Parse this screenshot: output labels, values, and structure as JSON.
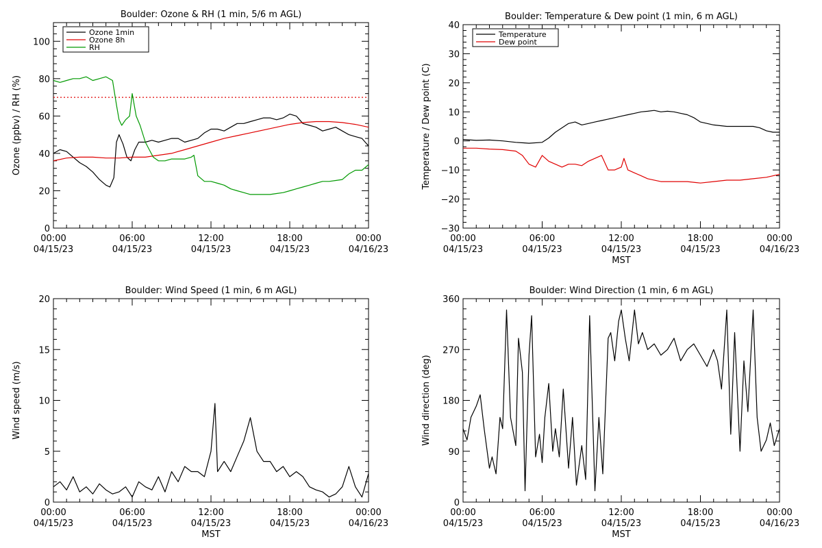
{
  "chart_data": [
    {
      "id": "ozone_rh",
      "type": "line",
      "title": "Boulder: Ozone & RH (1 min, 5/6 m AGL)",
      "xlabel": "",
      "ylabel": "Ozone (ppbv) / RH (%)",
      "xlim": [
        0,
        24
      ],
      "ylim": [
        0,
        110
      ],
      "x_ticks": [
        0,
        6,
        12,
        18,
        24
      ],
      "x_tick_labels": [
        [
          "00:00",
          "04/15/23"
        ],
        [
          "06:00",
          "04/15/23"
        ],
        [
          "12:00",
          "04/15/23"
        ],
        [
          "18:00",
          "04/15/23"
        ],
        [
          "00:00",
          "04/16/23"
        ]
      ],
      "y_ticks": [
        0,
        20,
        40,
        60,
        80,
        100
      ],
      "y_tick_labels": [
        "0",
        "20",
        "40",
        "60",
        "80",
        "100"
      ],
      "grid": false,
      "legend": {
        "placement": "top-left",
        "entries": [
          {
            "name": "Ozone 1min",
            "color": "#000000"
          },
          {
            "name": "Ozone 8h",
            "color": "#e00000"
          },
          {
            "name": "RH",
            "color": "#009900"
          }
        ]
      },
      "reference_lines": [
        {
          "y": 70,
          "style": "dotted",
          "color": "#e00000"
        }
      ],
      "series": [
        {
          "name": "Ozone 1min",
          "color": "#000000",
          "x": [
            0,
            0.5,
            1,
            1.5,
            2,
            2.5,
            3,
            3.5,
            4,
            4.3,
            4.6,
            4.8,
            5,
            5.3,
            5.6,
            5.9,
            6.2,
            6.5,
            7,
            7.5,
            8,
            8.5,
            9,
            9.5,
            10,
            10.5,
            11,
            11.5,
            12,
            12.5,
            13,
            13.5,
            14,
            14.5,
            15,
            15.5,
            16,
            16.5,
            17,
            17.5,
            18,
            18.5,
            19,
            19.5,
            20,
            20.5,
            21,
            21.5,
            22,
            22.5,
            23,
            23.5,
            24
          ],
          "values": [
            40,
            42,
            41,
            38,
            35,
            33,
            30,
            26,
            23,
            22,
            27,
            46,
            50,
            45,
            38,
            36,
            42,
            46,
            46,
            47,
            46,
            47,
            48,
            48,
            46,
            47,
            48,
            51,
            53,
            53,
            52,
            54,
            56,
            56,
            57,
            58,
            59,
            59,
            58,
            59,
            61,
            60,
            56,
            55,
            54,
            52,
            53,
            54,
            52,
            50,
            49,
            48,
            44
          ]
        },
        {
          "name": "Ozone 8h",
          "color": "#e00000",
          "x": [
            0,
            1,
            2,
            3,
            4,
            5,
            6,
            7,
            8,
            9,
            10,
            11,
            12,
            13,
            14,
            15,
            16,
            17,
            18,
            19,
            20,
            21,
            22,
            23,
            24
          ],
          "values": [
            36,
            37.5,
            38,
            38,
            37.5,
            37.5,
            38,
            38,
            39,
            40,
            42,
            44,
            46,
            48,
            49.5,
            51,
            52.5,
            54,
            55.5,
            56.5,
            57,
            57,
            56.5,
            55.5,
            54
          ]
        },
        {
          "name": "RH",
          "color": "#009900",
          "x": [
            0,
            0.5,
            1,
            1.5,
            2,
            2.5,
            3,
            3.5,
            4,
            4.5,
            4.8,
            5,
            5.2,
            5.5,
            5.8,
            6,
            6.3,
            6.6,
            7,
            7.3,
            7.6,
            8,
            8.5,
            9,
            9.5,
            10,
            10.5,
            10.7,
            11,
            11.5,
            12,
            12.5,
            13,
            13.5,
            14,
            14.5,
            15,
            15.5,
            16,
            16.5,
            17,
            17.5,
            18,
            18.5,
            19,
            19.5,
            20,
            20.5,
            21,
            21.5,
            22,
            22.5,
            23,
            23.5,
            24
          ],
          "values": [
            79,
            78,
            79,
            80,
            80,
            81,
            79,
            80,
            81,
            79,
            66,
            58,
            55,
            58,
            60,
            72,
            60,
            55,
            46,
            42,
            38,
            36,
            36,
            37,
            37,
            37,
            38,
            39,
            28,
            25,
            25,
            24,
            23,
            21,
            20,
            19,
            18,
            18,
            18,
            18,
            18.5,
            19,
            20,
            21,
            22,
            23,
            24,
            25,
            25,
            25.5,
            26,
            29,
            31,
            31,
            34
          ]
        }
      ]
    },
    {
      "id": "temp_dew",
      "type": "line",
      "title": "Boulder: Temperature & Dew point (1 min, 6 m AGL)",
      "xlabel": "MST",
      "ylabel": "Temperature / Dew point (C)",
      "xlim": [
        0,
        24
      ],
      "ylim": [
        -30,
        40
      ],
      "x_ticks": [
        0,
        6,
        12,
        18,
        24
      ],
      "x_tick_labels": [
        [
          "00:00",
          "04/15/23"
        ],
        [
          "06:00",
          "04/15/23"
        ],
        [
          "12:00",
          "04/15/23"
        ],
        [
          "18:00",
          "04/15/23"
        ],
        [
          "00:00",
          "04/16/23"
        ]
      ],
      "y_ticks": [
        -30,
        -20,
        -10,
        0,
        10,
        20,
        30,
        40
      ],
      "y_tick_labels": [
        "−30",
        "−20",
        "−10",
        "0",
        "10",
        "20",
        "30",
        "40"
      ],
      "grid": false,
      "legend": {
        "placement": "top-left",
        "entries": [
          {
            "name": "Temperature",
            "color": "#000000"
          },
          {
            "name": "Dew point",
            "color": "#e00000"
          }
        ]
      },
      "reference_lines": [],
      "series": [
        {
          "name": "Temperature",
          "color": "#000000",
          "x": [
            0,
            1,
            2,
            3,
            4,
            5,
            6,
            6.5,
            7,
            7.5,
            8,
            8.5,
            9,
            9.5,
            10,
            10.5,
            11,
            11.5,
            12,
            12.5,
            13,
            13.5,
            14,
            14.5,
            15,
            15.5,
            16,
            16.5,
            17,
            17.5,
            18,
            19,
            20,
            21,
            22,
            22.5,
            23,
            23.5,
            24
          ],
          "values": [
            0.5,
            0.2,
            0.3,
            0,
            -0.5,
            -0.8,
            -0.5,
            1,
            3,
            4.5,
            6,
            6.5,
            5.5,
            6,
            6.5,
            7,
            7.5,
            8,
            8.5,
            9,
            9.5,
            10,
            10.2,
            10.5,
            10,
            10.2,
            10,
            9.5,
            9,
            8,
            6.5,
            5.5,
            5,
            5,
            5,
            4.5,
            3.5,
            3,
            3
          ]
        },
        {
          "name": "Dew point",
          "color": "#e00000",
          "x": [
            0,
            1,
            2,
            3,
            4,
            4.5,
            5,
            5.5,
            6,
            6.5,
            7,
            7.5,
            8,
            8.5,
            9,
            9.5,
            10,
            10.5,
            11,
            11.5,
            12,
            12.2,
            12.5,
            13,
            13.5,
            14,
            15,
            16,
            17,
            18,
            19,
            20,
            21,
            22,
            23,
            24
          ],
          "values": [
            -2.5,
            -2.5,
            -2.8,
            -3,
            -3.5,
            -5,
            -8,
            -9,
            -5,
            -7,
            -8,
            -9,
            -8,
            -8,
            -8.5,
            -7,
            -6,
            -5,
            -10,
            -10,
            -9,
            -6,
            -10,
            -11,
            -12,
            -13,
            -14,
            -14,
            -14,
            -14.5,
            -14,
            -13.5,
            -13.5,
            -13,
            -12.5,
            -11.5
          ]
        }
      ]
    },
    {
      "id": "wind_speed",
      "type": "line",
      "title": "Boulder: Wind Speed (1 min, 6 m AGL)",
      "xlabel": "MST",
      "ylabel": "Wind speed (m/s)",
      "xlim": [
        0,
        24
      ],
      "ylim": [
        0,
        20
      ],
      "x_ticks": [
        0,
        6,
        12,
        18,
        24
      ],
      "x_tick_labels": [
        [
          "00:00",
          "04/15/23"
        ],
        [
          "06:00",
          "04/15/23"
        ],
        [
          "12:00",
          "04/15/23"
        ],
        [
          "18:00",
          "04/15/23"
        ],
        [
          "00:00",
          "04/16/23"
        ]
      ],
      "y_ticks": [
        0,
        5,
        10,
        15,
        20
      ],
      "y_tick_labels": [
        "0",
        "5",
        "10",
        "15",
        "20"
      ],
      "grid": false,
      "legend": null,
      "reference_lines": [],
      "series": [
        {
          "name": "Wind speed",
          "color": "#000000",
          "x": [
            0,
            0.5,
            1,
            1.5,
            2,
            2.5,
            3,
            3.5,
            4,
            4.5,
            5,
            5.5,
            6,
            6.5,
            7,
            7.5,
            8,
            8.5,
            9,
            9.5,
            10,
            10.5,
            11,
            11.5,
            12,
            12.3,
            12.5,
            13,
            13.5,
            14,
            14.5,
            15,
            15.5,
            16,
            16.5,
            17,
            17.5,
            18,
            18.5,
            19,
            19.5,
            20,
            20.5,
            21,
            21.5,
            22,
            22.5,
            23,
            23.5,
            24
          ],
          "values": [
            1.5,
            2,
            1.2,
            2.5,
            1,
            1.5,
            0.8,
            1.8,
            1.2,
            0.8,
            1,
            1.5,
            0.5,
            2,
            1.5,
            1.2,
            2.5,
            1,
            3,
            2,
            3.5,
            3,
            3,
            2.5,
            5,
            9.7,
            3,
            4,
            3,
            4.5,
            6,
            8.3,
            5,
            4,
            4,
            3,
            3.5,
            2.5,
            3,
            2.5,
            1.5,
            1.2,
            1,
            0.5,
            0.8,
            1.5,
            3.5,
            1.5,
            0.5,
            2.8
          ]
        }
      ]
    },
    {
      "id": "wind_direction",
      "type": "line",
      "title": "Boulder: Wind Direction (1 min, 6 m AGL)",
      "xlabel": "MST",
      "ylabel": "Wind direction (deg)",
      "xlim": [
        0,
        24
      ],
      "ylim": [
        0,
        360
      ],
      "x_ticks": [
        0,
        6,
        12,
        18,
        24
      ],
      "x_tick_labels": [
        [
          "00:00",
          "04/15/23"
        ],
        [
          "06:00",
          "04/15/23"
        ],
        [
          "12:00",
          "04/15/23"
        ],
        [
          "18:00",
          "04/15/23"
        ],
        [
          "00:00",
          "04/16/23"
        ]
      ],
      "y_ticks": [
        0,
        90,
        180,
        270,
        360
      ],
      "y_tick_labels": [
        "0",
        "90",
        "180",
        "270",
        "360"
      ],
      "grid": false,
      "legend": null,
      "reference_lines": [],
      "series": [
        {
          "name": "Wind direction",
          "color": "#000000",
          "x": [
            0,
            0.3,
            0.6,
            1,
            1.3,
            1.6,
            2,
            2.2,
            2.5,
            2.8,
            3,
            3.3,
            3.6,
            4,
            4.2,
            4.5,
            4.7,
            5,
            5.2,
            5.5,
            5.8,
            6,
            6.2,
            6.5,
            6.8,
            7,
            7.3,
            7.6,
            8,
            8.3,
            8.6,
            9,
            9.3,
            9.6,
            10,
            10.3,
            10.6,
            11,
            11.2,
            11.5,
            11.8,
            12,
            12.3,
            12.6,
            13,
            13.3,
            13.6,
            14,
            14.5,
            15,
            15.5,
            16,
            16.5,
            17,
            17.5,
            18,
            18.5,
            19,
            19.3,
            19.6,
            20,
            20.3,
            20.6,
            21,
            21.3,
            21.6,
            22,
            22.3,
            22.6,
            23,
            23.3,
            23.6,
            24
          ],
          "values": [
            130,
            110,
            150,
            170,
            190,
            130,
            60,
            80,
            50,
            150,
            130,
            340,
            150,
            100,
            290,
            230,
            20,
            260,
            330,
            80,
            120,
            70,
            150,
            210,
            90,
            130,
            80,
            200,
            60,
            150,
            30,
            100,
            40,
            330,
            20,
            150,
            50,
            290,
            300,
            250,
            320,
            340,
            290,
            250,
            340,
            280,
            300,
            270,
            280,
            260,
            270,
            290,
            250,
            270,
            280,
            260,
            240,
            270,
            250,
            200,
            340,
            120,
            300,
            90,
            250,
            160,
            340,
            150,
            90,
            110,
            140,
            100,
            130
          ]
        }
      ]
    }
  ]
}
